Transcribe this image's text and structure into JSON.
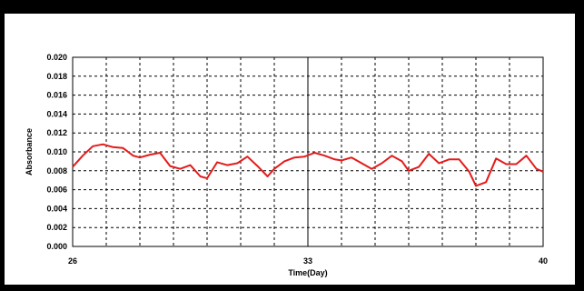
{
  "chart_data": {
    "type": "line",
    "title": "",
    "xlabel": "Time(Day)",
    "ylabel": "Absorbance",
    "xlim": [
      26,
      40
    ],
    "ylim": [
      0.0,
      0.02
    ],
    "x_tick_labels": [
      "26",
      "33",
      "40"
    ],
    "y_tick_labels": [
      "0.000",
      "0.002",
      "0.004",
      "0.006",
      "0.008",
      "0.010",
      "0.012",
      "0.014",
      "0.016",
      "0.018",
      "0.020"
    ],
    "grid": true,
    "line_color": "#e31b1b",
    "series": [
      {
        "x": [
          26.0,
          26.3,
          26.6,
          26.9,
          27.2,
          27.5,
          27.8,
          28.0,
          28.3,
          28.6,
          28.9,
          29.2,
          29.5,
          29.8,
          30.0,
          30.3,
          30.6,
          30.9,
          31.2,
          31.5,
          31.8,
          32.0,
          32.3,
          32.6,
          32.9,
          33.2,
          33.5,
          33.8,
          34.0,
          34.3,
          34.6,
          34.9,
          35.2,
          35.5,
          35.8,
          36.0,
          36.3,
          36.6,
          36.9,
          37.2,
          37.5,
          37.8,
          38.0,
          38.3,
          38.6,
          38.9,
          39.2,
          39.5,
          39.8,
          40.0
        ],
        "y": [
          0.0084,
          0.0096,
          0.0106,
          0.0108,
          0.0105,
          0.0104,
          0.0096,
          0.0094,
          0.0097,
          0.0099,
          0.0085,
          0.0082,
          0.0086,
          0.0074,
          0.0072,
          0.0089,
          0.0086,
          0.0088,
          0.0095,
          0.0085,
          0.0074,
          0.0082,
          0.009,
          0.0094,
          0.0095,
          0.0099,
          0.0096,
          0.0092,
          0.0091,
          0.0094,
          0.0088,
          0.0082,
          0.0088,
          0.0096,
          0.009,
          0.008,
          0.0084,
          0.0098,
          0.0088,
          0.0092,
          0.0092,
          0.0079,
          0.0064,
          0.0068,
          0.0093,
          0.0087,
          0.0087,
          0.0096,
          0.0082,
          0.0079
        ]
      }
    ]
  }
}
